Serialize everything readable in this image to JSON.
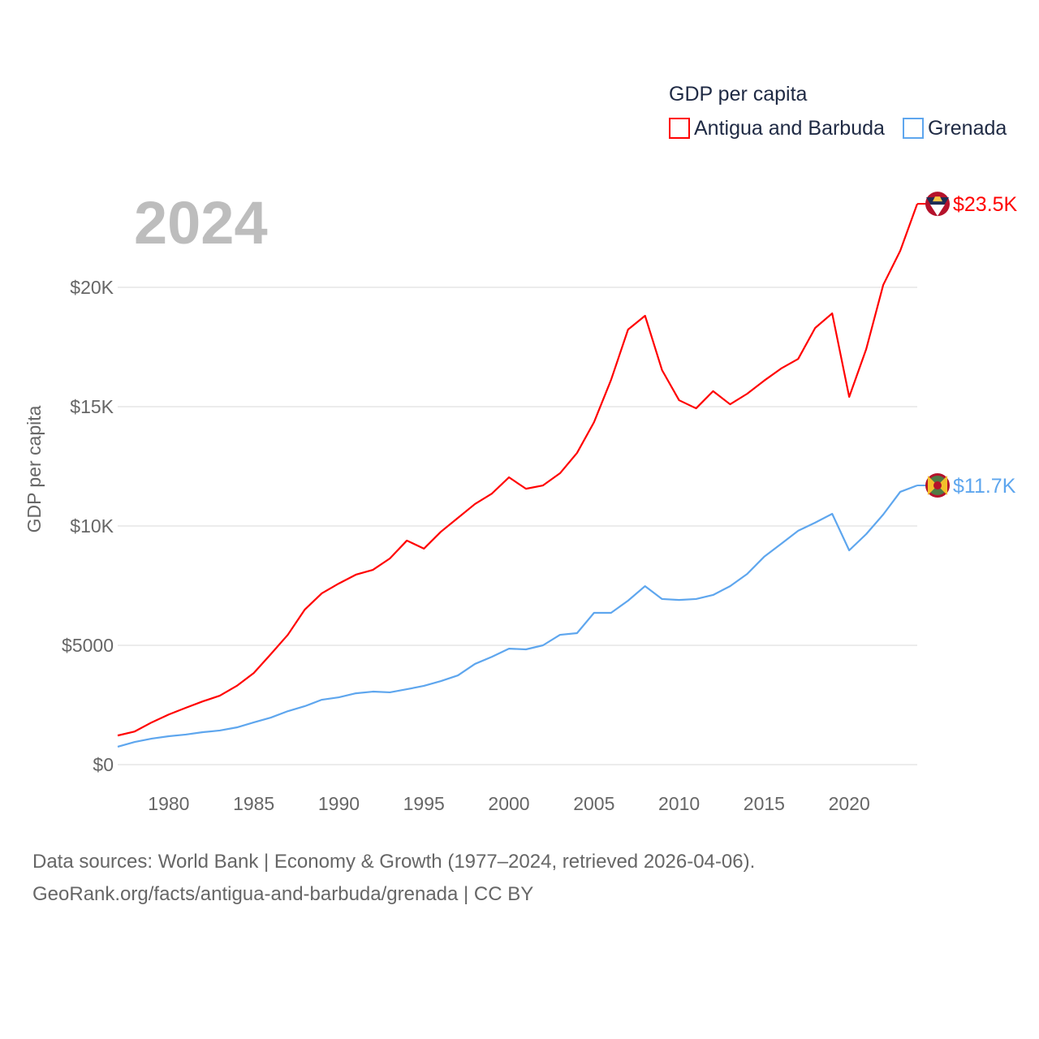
{
  "chart_data": {
    "type": "line",
    "title": "GDP per capita",
    "year_label": "2024",
    "xlabel": "",
    "ylabel": "GDP per capita",
    "xlim": [
      1977,
      2024
    ],
    "ylim": [
      0,
      25000
    ],
    "grid": true,
    "legend_placement": "top-right",
    "x_ticks": [
      1980,
      1985,
      1990,
      1995,
      2000,
      2005,
      2010,
      2015,
      2020
    ],
    "y_ticks": [
      {
        "value": 0,
        "label": "$0"
      },
      {
        "value": 5000,
        "label": "$5000"
      },
      {
        "value": 10000,
        "label": "$10K"
      },
      {
        "value": 15000,
        "label": "$15K"
      },
      {
        "value": 20000,
        "label": "$20K"
      }
    ],
    "x": [
      1977,
      1978,
      1979,
      1980,
      1981,
      1982,
      1983,
      1984,
      1985,
      1986,
      1987,
      1988,
      1989,
      1990,
      1991,
      1992,
      1993,
      1994,
      1995,
      1996,
      1997,
      1998,
      1999,
      2000,
      2001,
      2002,
      2003,
      2004,
      2005,
      2006,
      2007,
      2008,
      2009,
      2010,
      2011,
      2012,
      2013,
      2014,
      2015,
      2016,
      2017,
      2018,
      2019,
      2020,
      2021,
      2022,
      2023,
      2024
    ],
    "series": [
      {
        "name": "Antigua and Barbuda",
        "color": "#ff0000",
        "end_label": "$23.5K",
        "flag": "antigua-flag",
        "values": [
          1220,
          1390,
          1770,
          2100,
          2380,
          2650,
          2890,
          3300,
          3840,
          4630,
          5440,
          6500,
          7180,
          7590,
          7960,
          8160,
          8640,
          9390,
          9050,
          9760,
          10340,
          10920,
          11360,
          12040,
          11560,
          11700,
          12210,
          13060,
          14350,
          16120,
          18230,
          18810,
          16530,
          15270,
          14930,
          15650,
          15100,
          15540,
          16090,
          16600,
          17000,
          18300,
          18910,
          15410,
          17410,
          20100,
          21530,
          23500
        ]
      },
      {
        "name": "Grenada",
        "color": "#5ea6ee",
        "end_label": "$11.7K",
        "flag": "grenada-flag",
        "values": [
          750,
          950,
          1090,
          1190,
          1260,
          1360,
          1430,
          1560,
          1770,
          1970,
          2240,
          2450,
          2720,
          2820,
          2990,
          3060,
          3030,
          3160,
          3300,
          3500,
          3740,
          4220,
          4520,
          4860,
          4830,
          5000,
          5440,
          5510,
          6360,
          6360,
          6870,
          7480,
          6940,
          6900,
          6940,
          7110,
          7480,
          7990,
          8710,
          9250,
          9800,
          10140,
          10510,
          8980,
          9660,
          10480,
          11430,
          11700
        ]
      }
    ]
  },
  "footer": {
    "line1": "Data sources: World Bank | Economy & Growth (1977–2024, retrieved 2026-04-06).",
    "line2": "GeoRank.org/facts/antigua-and-barbuda/grenada | CC BY"
  }
}
